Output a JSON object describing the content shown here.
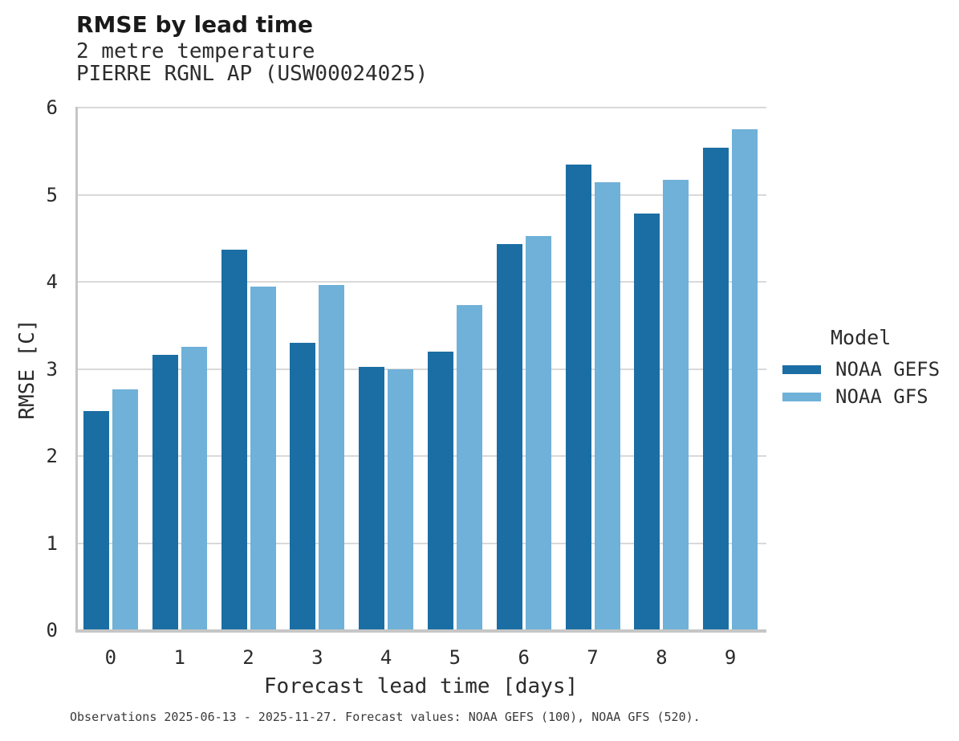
{
  "header": {
    "title": "RMSE by lead time",
    "subtitle_variable": "2 metre temperature",
    "subtitle_station": "PIERRE RGNL AP (USW00024025)"
  },
  "footnote": "Observations 2025-06-13 - 2025-11-27. Forecast values: NOAA GEFS (100), NOAA GFS (520).",
  "colors": {
    "noaa_gefs": "#1b6ea3",
    "noaa_gfs": "#6fb1d8",
    "gridline": "#d9d9d9",
    "spine": "#c6c6c6"
  },
  "chart_data": {
    "type": "bar",
    "title": "RMSE by lead time",
    "subtitle": [
      "2 metre temperature",
      "PIERRE RGNL AP (USW00024025)"
    ],
    "categories": [
      "0",
      "1",
      "2",
      "3",
      "4",
      "5",
      "6",
      "7",
      "8",
      "9"
    ],
    "series": [
      {
        "name": "NOAA GEFS",
        "color": "#1b6ea3",
        "values": [
          2.51,
          3.15,
          4.36,
          3.29,
          3.01,
          3.19,
          4.42,
          5.34,
          4.77,
          5.53
        ]
      },
      {
        "name": "NOAA GFS",
        "color": "#6fb1d8",
        "values": [
          2.76,
          3.24,
          3.94,
          3.95,
          2.99,
          3.72,
          4.52,
          5.13,
          5.16,
          5.74
        ]
      }
    ],
    "xlabel": "Forecast lead time [days]",
    "ylabel": "RMSE [C]",
    "ylim": [
      0,
      6
    ],
    "yticks": [
      0,
      1,
      2,
      3,
      4,
      5,
      6
    ],
    "grid": true,
    "legend_title": "Model",
    "legend_position": "right"
  }
}
